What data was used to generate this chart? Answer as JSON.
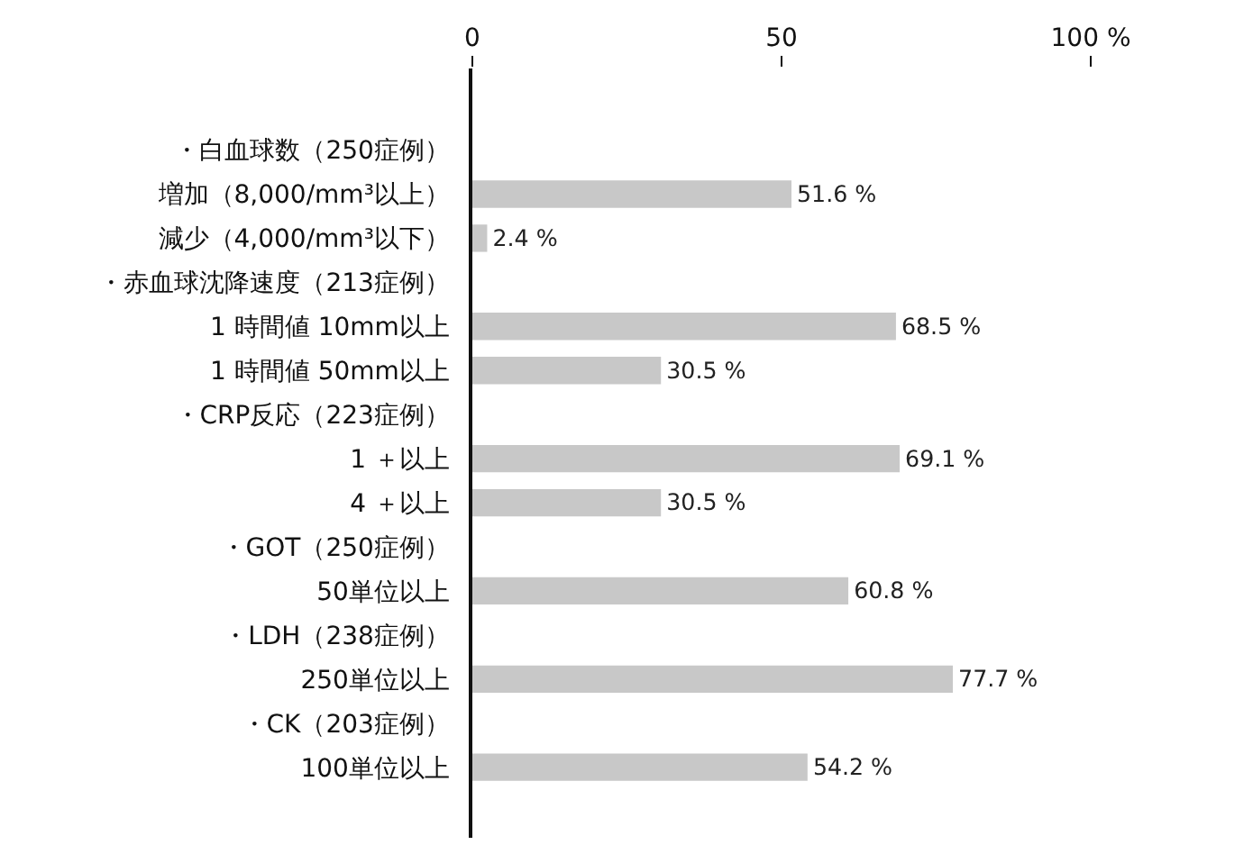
{
  "chart_data": {
    "type": "bar",
    "orientation": "horizontal",
    "categories": [
      "・白血球数（250症例）",
      "増加（8,000/mm³以上）",
      "減少（4,000/mm³以下）",
      "・赤血球沈降速度（213症例）",
      "1 時間値 10mm以上",
      "1 時間値 50mm以上",
      "・CRP反応（223症例）",
      "1 ＋以上",
      "4 ＋以上",
      "・GOT（250症例）",
      "50単位以上",
      "・LDH（238症例）",
      "250単位以上",
      "・CK（203症例）",
      "100単位以上"
    ],
    "values": [
      null,
      51.6,
      2.4,
      null,
      68.5,
      30.5,
      null,
      69.1,
      30.5,
      null,
      60.8,
      null,
      77.7,
      null,
      54.2
    ],
    "value_labels": [
      null,
      "51.6 %",
      "2.4 %",
      null,
      "68.5 %",
      "30.5 %",
      null,
      "69.1 %",
      "30.5 %",
      null,
      "60.8 %",
      null,
      "77.7 %",
      null,
      "54.2 %"
    ],
    "color": "#c8c8c8",
    "xlim": [
      0,
      100
    ],
    "xticks": [
      0,
      50,
      {
        "value": 100,
        "label": "100 %"
      }
    ]
  }
}
